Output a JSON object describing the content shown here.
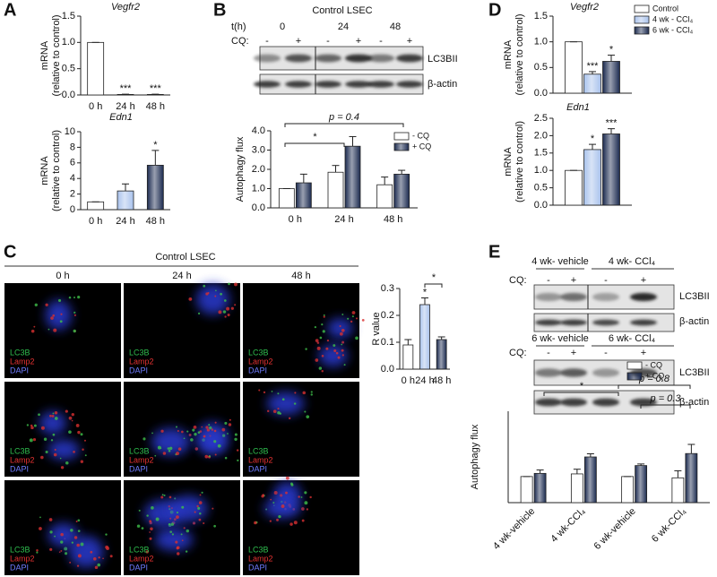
{
  "panel_letters": [
    "A",
    "B",
    "C",
    "D",
    "E"
  ],
  "blot_b": {
    "title": "Control LSEC",
    "time_label": "t(h)",
    "times": [
      "0",
      "24",
      "48"
    ],
    "cq_label": "CQ:",
    "cq_signs": [
      "-",
      "+"
    ],
    "bands": [
      "LC3BII",
      "β-actin"
    ]
  },
  "panel_c": {
    "title": "Control LSEC",
    "columns": [
      "0 h",
      "24 h",
      "48 h"
    ],
    "channels": [
      "LC3B",
      "Lamp2",
      "DAPI"
    ]
  },
  "blot_e": {
    "groups_top": [
      "4 wk- vehicle",
      "4 wk- CCl₄"
    ],
    "groups_bottom": [
      "6 wk- vehicle",
      "6 wk- CCl₄"
    ],
    "cq_label": "CQ:",
    "cq_signs": [
      "-",
      "+"
    ],
    "bands": [
      "LC3BII",
      "β-actin"
    ]
  },
  "chart_data": [
    {
      "type": "bar",
      "title": "Vegfr2",
      "ylabel": [
        "mRNA",
        "(relative to control)"
      ],
      "categories": [
        "0 h",
        "24 h",
        "48 h"
      ],
      "series": [
        {
          "colors": [
            "#ffffff",
            "#a9c2ec",
            "#1c2b50"
          ],
          "values": [
            1.0,
            0.01,
            0.01
          ],
          "errors": [
            0,
            0.005,
            0.005
          ],
          "significance": [
            null,
            "***",
            "***"
          ]
        }
      ],
      "ylim": [
        0,
        1.5
      ],
      "yticks": [
        {
          "value": 0,
          "label": "0.0"
        },
        {
          "value": 0.5,
          "label": "0.5"
        },
        {
          "value": 1,
          "label": "1.0"
        },
        {
          "value": 1.5,
          "label": "1.5"
        }
      ]
    },
    {
      "type": "bar",
      "title": "Edn1",
      "ylabel": [
        "mRNA",
        "(relative to control)"
      ],
      "categories": [
        "0 h",
        "24 h",
        "48 h"
      ],
      "series": [
        {
          "colors": [
            "#ffffff",
            "#a9c2ec",
            "#1c2b50"
          ],
          "values": [
            1.0,
            2.4,
            5.7
          ],
          "errors": [
            0,
            0.9,
            1.9
          ],
          "significance": [
            null,
            null,
            "*"
          ]
        }
      ],
      "ylim": [
        0,
        10
      ],
      "yticks": [
        0,
        2,
        4,
        6,
        8,
        10
      ]
    },
    {
      "type": "bar",
      "ylabel": [
        "Autophagy flux"
      ],
      "categories": [
        "0 h",
        "24 h",
        "48 h"
      ],
      "series": [
        {
          "name": "- CQ",
          "color": "#ffffff",
          "values": [
            1.0,
            1.85,
            1.2
          ],
          "errors": [
            0,
            0.35,
            0.4
          ]
        },
        {
          "name": "+ CQ",
          "color": "#1c2b50",
          "values": [
            1.3,
            3.2,
            1.75
          ],
          "errors": [
            0.45,
            0.5,
            0.2
          ]
        }
      ],
      "ylim": [
        0,
        4
      ],
      "yticks": [
        {
          "value": 0,
          "label": "0.0"
        },
        {
          "value": 1,
          "label": "1.0"
        },
        {
          "value": 2,
          "label": "2.0"
        },
        {
          "value": 3,
          "label": "3.0"
        },
        {
          "value": 4,
          "label": "4.0"
        }
      ],
      "brackets": [
        "*",
        "p = 0.4"
      ],
      "legend": "top-right"
    },
    {
      "type": "bar",
      "ylabel": [
        "R value"
      ],
      "categories": [
        "0 h",
        "24 h",
        "48 h"
      ],
      "series": [
        {
          "colors": [
            "#ffffff",
            "#a9c2ec",
            "#1c2b50"
          ],
          "values": [
            0.09,
            0.24,
            0.11
          ],
          "errors": [
            0.02,
            0.025,
            0.01
          ],
          "significance": [
            null,
            "*",
            null
          ]
        }
      ],
      "ylim": [
        0,
        0.3
      ],
      "yticks": [
        {
          "value": 0,
          "label": "0.0"
        },
        {
          "value": 0.1,
          "label": "0.1"
        },
        {
          "value": 0.2,
          "label": "0.2"
        },
        {
          "value": 0.3,
          "label": "0.3"
        }
      ],
      "brackets": [
        "*"
      ]
    },
    {
      "type": "bar",
      "title": "Vegfr2",
      "ylabel": [
        "mRNA",
        "(relative to control)"
      ],
      "series": [
        {
          "name": "Control",
          "color": "#ffffff",
          "values": [
            1.0
          ],
          "errors": [
            0
          ]
        },
        {
          "name": "4 wk - CCl₄",
          "color": "#a9c2ec",
          "values": [
            0.37
          ],
          "errors": [
            0.05
          ],
          "significance": [
            "***"
          ]
        },
        {
          "name": "6 wk - CCl₄",
          "color": "#1c2b50",
          "values": [
            0.62
          ],
          "errors": [
            0.12
          ],
          "significance": [
            "*"
          ]
        }
      ],
      "ylim": [
        0,
        1.5
      ],
      "yticks": [
        {
          "value": 0,
          "label": "0.0"
        },
        {
          "value": 0.5,
          "label": "0.5"
        },
        {
          "value": 1,
          "label": "1.0"
        },
        {
          "value": 1.5,
          "label": "1.5"
        }
      ],
      "legend": "top-right"
    },
    {
      "type": "bar",
      "title": "Edn1",
      "ylabel": [
        "mRNA",
        "(relative to control)"
      ],
      "series": [
        {
          "color": "#ffffff",
          "values": [
            1.0
          ],
          "errors": [
            0
          ]
        },
        {
          "color": "#a9c2ec",
          "values": [
            1.6
          ],
          "errors": [
            0.15
          ],
          "significance": [
            "*"
          ]
        },
        {
          "color": "#1c2b50",
          "values": [
            2.05
          ],
          "errors": [
            0.15
          ],
          "significance": [
            "***"
          ]
        }
      ],
      "ylim": [
        0,
        2.5
      ],
      "yticks": [
        {
          "value": 0,
          "label": "0.0"
        },
        {
          "value": 0.5,
          "label": "0.5"
        },
        {
          "value": 1,
          "label": "1.0"
        },
        {
          "value": 1.5,
          "label": "1.5"
        },
        {
          "value": 2,
          "label": "2.0"
        },
        {
          "value": 2.5,
          "label": "2.5"
        }
      ]
    },
    {
      "type": "bar",
      "ylabel": [
        "Autophagy flux"
      ],
      "categories": [
        "4 wk-vehicle",
        "4 wk-CCl₄",
        "6 wk-vehicle",
        "6 wk-CCl₄"
      ],
      "series": [
        {
          "name": "- CQ",
          "color": "#ffffff",
          "values": [
            1.0,
            1.1,
            1.0,
            0.95
          ],
          "errors": [
            0,
            0.18,
            0,
            0.27
          ]
        },
        {
          "name": "+ CQ",
          "color": "#1c2b50",
          "values": [
            1.12,
            1.75,
            1.42,
            1.88
          ],
          "errors": [
            0.13,
            0.12,
            0.06,
            0.35
          ]
        }
      ],
      "ylim": [
        0,
        3.5
      ],
      "brackets": [
        "*",
        "p = 0.8",
        "p = 0.3"
      ],
      "legend": "top-right"
    }
  ]
}
